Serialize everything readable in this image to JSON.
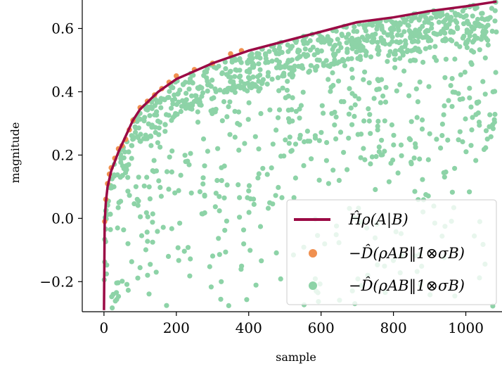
{
  "chart_data": {
    "type": "scatter",
    "title": "",
    "xlabel": "sample",
    "ylabel": "magnitude",
    "xlim": [
      -60,
      1100
    ],
    "ylim": [
      -0.295,
      0.69
    ],
    "xticks": [
      0,
      200,
      400,
      600,
      800,
      1000
    ],
    "xtick_labels": [
      "0",
      "200",
      "400",
      "600",
      "800",
      "1000"
    ],
    "yticks": [
      -0.2,
      0.0,
      0.2,
      0.4,
      0.6
    ],
    "ytick_labels": [
      "−0.2",
      "0.0",
      "0.2",
      "0.4",
      "0.6"
    ],
    "grid": false,
    "legend_position": "lower-right",
    "curve": {
      "name": "Ĥρ(A|B)",
      "color": "#9b0a45",
      "x": [
        0,
        2,
        5,
        10,
        20,
        40,
        60,
        80,
        100,
        150,
        200,
        300,
        400,
        500,
        600,
        700,
        800,
        900,
        1000,
        1085
      ],
      "y": [
        -0.29,
        -0.01,
        0.05,
        0.1,
        0.15,
        0.21,
        0.26,
        0.31,
        0.345,
        0.4,
        0.44,
        0.49,
        0.53,
        0.56,
        0.59,
        0.62,
        0.635,
        0.655,
        0.67,
        0.685
      ]
    },
    "series": [
      {
        "name": "−D̂(ρAB‖1⊗σB)",
        "color": "#f09050",
        "x": [
          2,
          5,
          10,
          15,
          20,
          30,
          40,
          50,
          60,
          70,
          80,
          100,
          120,
          140,
          160,
          180,
          200,
          250,
          300,
          350,
          380
        ],
        "y": [
          -0.01,
          0.06,
          0.11,
          0.14,
          0.16,
          0.19,
          0.22,
          0.23,
          0.25,
          0.28,
          0.31,
          0.35,
          0.37,
          0.39,
          0.41,
          0.43,
          0.45,
          0.47,
          0.49,
          0.52,
          0.53
        ]
      },
      {
        "name": "−D̂(ρAB‖1⊗σB)",
        "color": "#8dd3a7",
        "x": [],
        "y": []
      }
    ],
    "series_note": ""
  }
}
